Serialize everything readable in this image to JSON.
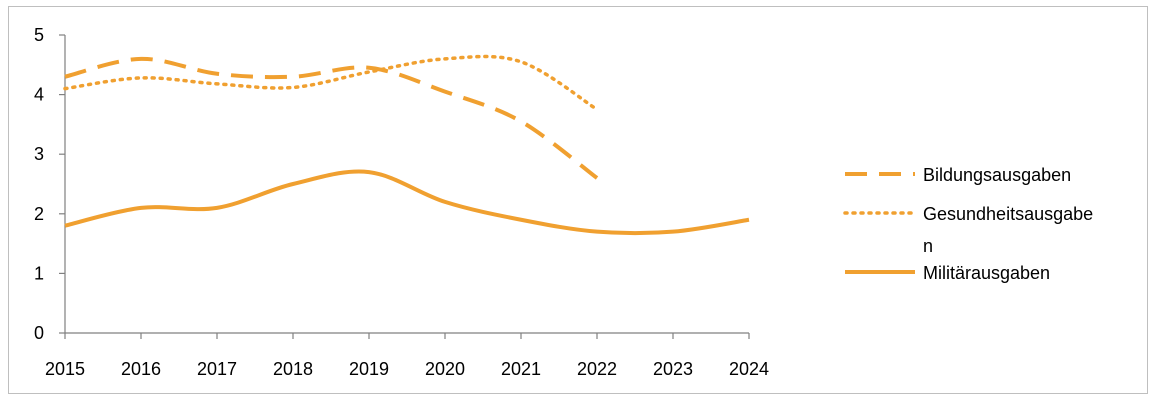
{
  "chart_data": {
    "type": "line",
    "title": "",
    "xlabel": "",
    "ylabel": "",
    "x": [
      "2015",
      "2016",
      "2017",
      "2018",
      "2019",
      "2020",
      "2021",
      "2022",
      "2023",
      "2024"
    ],
    "ylim": [
      0,
      5
    ],
    "yticks": [
      "0",
      "1",
      "2",
      "3",
      "4",
      "5"
    ],
    "grid": false,
    "legend_position": "right",
    "series": [
      {
        "name": "Bildungsausgaben",
        "style": "dashed",
        "color": "#f0a030",
        "values": [
          4.3,
          4.6,
          4.35,
          4.3,
          4.45,
          4.05,
          3.55,
          2.6,
          null,
          null
        ]
      },
      {
        "name": "Gesundheitsausgaben",
        "style": "dotted",
        "color": "#f0a030",
        "values": [
          4.1,
          4.28,
          4.18,
          4.12,
          4.38,
          4.6,
          4.55,
          3.75,
          null,
          null
        ]
      },
      {
        "name": "Militärausgaben",
        "style": "solid",
        "color": "#f0a030",
        "values": [
          1.8,
          2.1,
          2.1,
          2.5,
          2.7,
          2.2,
          1.9,
          1.7,
          1.7,
          1.9
        ]
      }
    ]
  }
}
